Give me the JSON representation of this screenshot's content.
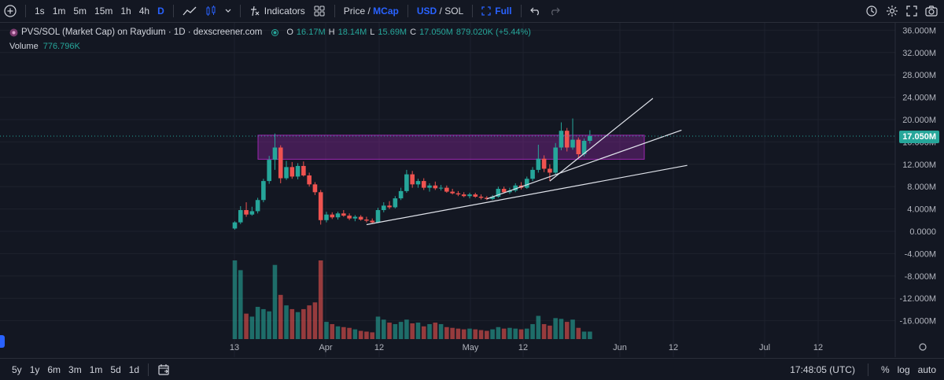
{
  "toolbar": {
    "timeframes": [
      "1s",
      "1m",
      "5m",
      "15m",
      "1h",
      "4h",
      "D"
    ],
    "active_timeframe": "D",
    "indicators_label": "Indicators",
    "price_label": "Price",
    "sep1": "/",
    "mcap_label": "MCap",
    "usd_label": "USD",
    "sep2": "/",
    "sol_label": "SOL",
    "full_label": "Full"
  },
  "legend": {
    "title": "PVS/SOL (Market Cap) on Raydium · 1D · dexscreener.com",
    "o_key": "O",
    "o_val": "16.17M",
    "h_key": "H",
    "h_val": "18.14M",
    "l_key": "L",
    "l_val": "15.69M",
    "c_key": "C",
    "c_val": "17.050M",
    "change": "879.020K (+5.44%)",
    "volume_label": "Volume",
    "volume_val": "776.796K"
  },
  "price_axis": {
    "ticks": [
      "36.000M",
      "32.000M",
      "28.000M",
      "24.000M",
      "20.000M",
      "16.000M",
      "12.000M",
      "8.000M",
      "4.000M",
      "0.0000",
      "-4.000M",
      "-8.000M",
      "-12.000M",
      "-16.000M"
    ],
    "last_price": "17.050M"
  },
  "time_axis": {
    "ticks": [
      "13",
      "Apr",
      "12",
      "May",
      "12",
      "Jun",
      "12",
      "Jul",
      "12"
    ]
  },
  "bottombar": {
    "ranges": [
      "5y",
      "1y",
      "6m",
      "3m",
      "1m",
      "5d",
      "1d"
    ],
    "clock": "17:48:05 (UTC)",
    "pct": "%",
    "log": "log",
    "auto": "auto"
  },
  "colors": {
    "up": "#26a69a",
    "down": "#ef5350",
    "zone": "#9c27b0",
    "accent": "#2962ff"
  },
  "chart_data": {
    "type": "candlestick",
    "unit": "USD market cap (M)",
    "candles": [
      {
        "o": 0.5,
        "h": 1.8,
        "l": 0.3,
        "c": 1.6
      },
      {
        "o": 1.6,
        "h": 4.5,
        "l": 1.3,
        "c": 3.8
      },
      {
        "o": 3.8,
        "h": 5.2,
        "l": 2.6,
        "c": 3.0
      },
      {
        "o": 3.0,
        "h": 4.4,
        "l": 2.8,
        "c": 3.6
      },
      {
        "o": 3.6,
        "h": 6.0,
        "l": 3.2,
        "c": 5.6
      },
      {
        "o": 5.6,
        "h": 9.4,
        "l": 5.2,
        "c": 9.0
      },
      {
        "o": 9.0,
        "h": 13.5,
        "l": 8.5,
        "c": 12.8
      },
      {
        "o": 12.8,
        "h": 17.5,
        "l": 11.0,
        "c": 15.0
      },
      {
        "o": 15.0,
        "h": 15.4,
        "l": 8.6,
        "c": 9.5
      },
      {
        "o": 9.5,
        "h": 12.6,
        "l": 9.2,
        "c": 11.5
      },
      {
        "o": 11.5,
        "h": 12.4,
        "l": 9.4,
        "c": 9.8
      },
      {
        "o": 9.8,
        "h": 12.2,
        "l": 9.3,
        "c": 11.7
      },
      {
        "o": 11.7,
        "h": 12.5,
        "l": 9.8,
        "c": 10.0
      },
      {
        "o": 10.0,
        "h": 10.5,
        "l": 8.0,
        "c": 8.4
      },
      {
        "o": 8.4,
        "h": 8.8,
        "l": 6.5,
        "c": 7.0
      },
      {
        "o": 7.0,
        "h": 7.4,
        "l": 1.2,
        "c": 2.0
      },
      {
        "o": 2.0,
        "h": 3.5,
        "l": 1.6,
        "c": 3.0
      },
      {
        "o": 3.0,
        "h": 3.4,
        "l": 2.2,
        "c": 2.5
      },
      {
        "o": 2.5,
        "h": 3.5,
        "l": 2.1,
        "c": 3.2
      },
      {
        "o": 3.2,
        "h": 3.8,
        "l": 2.6,
        "c": 2.8
      },
      {
        "o": 2.8,
        "h": 3.2,
        "l": 2.0,
        "c": 2.3
      },
      {
        "o": 2.3,
        "h": 2.9,
        "l": 1.8,
        "c": 2.6
      },
      {
        "o": 2.6,
        "h": 2.9,
        "l": 1.9,
        "c": 2.1
      },
      {
        "o": 2.1,
        "h": 2.6,
        "l": 1.6,
        "c": 1.9
      },
      {
        "o": 1.9,
        "h": 2.3,
        "l": 1.4,
        "c": 1.6
      },
      {
        "o": 1.6,
        "h": 4.2,
        "l": 1.5,
        "c": 3.8
      },
      {
        "o": 3.8,
        "h": 5.2,
        "l": 3.4,
        "c": 4.6
      },
      {
        "o": 4.6,
        "h": 5.4,
        "l": 4.0,
        "c": 4.3
      },
      {
        "o": 4.3,
        "h": 6.3,
        "l": 4.1,
        "c": 5.9
      },
      {
        "o": 5.9,
        "h": 7.8,
        "l": 5.6,
        "c": 7.2
      },
      {
        "o": 7.2,
        "h": 11.0,
        "l": 6.9,
        "c": 10.2
      },
      {
        "o": 10.2,
        "h": 10.8,
        "l": 7.8,
        "c": 8.4
      },
      {
        "o": 8.4,
        "h": 9.4,
        "l": 7.8,
        "c": 9.0
      },
      {
        "o": 9.0,
        "h": 9.5,
        "l": 7.4,
        "c": 7.8
      },
      {
        "o": 7.8,
        "h": 8.6,
        "l": 7.1,
        "c": 8.2
      },
      {
        "o": 8.2,
        "h": 8.9,
        "l": 7.4,
        "c": 7.7
      },
      {
        "o": 7.7,
        "h": 8.3,
        "l": 7.3,
        "c": 7.8
      },
      {
        "o": 7.8,
        "h": 8.2,
        "l": 6.9,
        "c": 7.1
      },
      {
        "o": 7.1,
        "h": 7.6,
        "l": 6.6,
        "c": 6.8
      },
      {
        "o": 6.8,
        "h": 7.2,
        "l": 6.3,
        "c": 6.6
      },
      {
        "o": 6.6,
        "h": 7.0,
        "l": 6.1,
        "c": 6.3
      },
      {
        "o": 6.3,
        "h": 6.9,
        "l": 5.9,
        "c": 6.6
      },
      {
        "o": 6.6,
        "h": 6.9,
        "l": 6.0,
        "c": 6.2
      },
      {
        "o": 6.2,
        "h": 6.6,
        "l": 5.7,
        "c": 6.0
      },
      {
        "o": 6.0,
        "h": 6.3,
        "l": 5.6,
        "c": 5.8
      },
      {
        "o": 5.8,
        "h": 6.5,
        "l": 5.6,
        "c": 6.2
      },
      {
        "o": 6.2,
        "h": 8.0,
        "l": 6.0,
        "c": 7.6
      },
      {
        "o": 7.6,
        "h": 8.0,
        "l": 6.8,
        "c": 7.0
      },
      {
        "o": 7.0,
        "h": 7.8,
        "l": 6.7,
        "c": 7.3
      },
      {
        "o": 7.3,
        "h": 8.6,
        "l": 7.0,
        "c": 8.2
      },
      {
        "o": 8.2,
        "h": 8.8,
        "l": 7.5,
        "c": 7.8
      },
      {
        "o": 7.8,
        "h": 9.8,
        "l": 7.6,
        "c": 9.4
      },
      {
        "o": 9.4,
        "h": 11.5,
        "l": 9.0,
        "c": 11.0
      },
      {
        "o": 11.0,
        "h": 15.5,
        "l": 10.5,
        "c": 13.0
      },
      {
        "o": 13.0,
        "h": 13.6,
        "l": 10.6,
        "c": 11.2
      },
      {
        "o": 11.2,
        "h": 12.0,
        "l": 9.0,
        "c": 10.5
      },
      {
        "o": 10.5,
        "h": 15.8,
        "l": 10.2,
        "c": 15.0
      },
      {
        "o": 15.0,
        "h": 19.5,
        "l": 14.5,
        "c": 18.0
      },
      {
        "o": 18.0,
        "h": 18.5,
        "l": 14.3,
        "c": 15.0
      },
      {
        "o": 15.0,
        "h": 20.2,
        "l": 14.6,
        "c": 16.4
      },
      {
        "o": 16.4,
        "h": 16.8,
        "l": 13.2,
        "c": 13.8
      },
      {
        "o": 13.8,
        "h": 16.6,
        "l": 13.4,
        "c": 16.2
      },
      {
        "o": 16.2,
        "h": 18.1,
        "l": 15.7,
        "c": 17.05
      }
    ],
    "volume": [
      1.05,
      0.92,
      0.34,
      0.3,
      0.43,
      0.4,
      0.37,
      0.99,
      0.59,
      0.45,
      0.4,
      0.36,
      0.4,
      0.45,
      0.49,
      1.05,
      0.23,
      0.2,
      0.17,
      0.16,
      0.15,
      0.13,
      0.11,
      0.1,
      0.09,
      0.3,
      0.26,
      0.22,
      0.2,
      0.23,
      0.26,
      0.21,
      0.22,
      0.17,
      0.2,
      0.22,
      0.2,
      0.16,
      0.15,
      0.14,
      0.13,
      0.14,
      0.13,
      0.12,
      0.11,
      0.13,
      0.16,
      0.14,
      0.15,
      0.14,
      0.13,
      0.14,
      0.2,
      0.31,
      0.2,
      0.18,
      0.28,
      0.27,
      0.23,
      0.26,
      0.15,
      0.1,
      0.1
    ],
    "ylim": [
      -17,
      37
    ],
    "zone": {
      "y_low": 12.9,
      "y_high": 17.2
    },
    "trendlines": [
      {
        "x1": 23,
        "y1": 1.2,
        "x2": 79,
        "y2": 11.8
      },
      {
        "x1": 44,
        "y1": 5.8,
        "x2": 78,
        "y2": 18.1
      },
      {
        "x1": 55,
        "y1": 9.0,
        "x2": 73,
        "y2": 23.8
      }
    ]
  }
}
